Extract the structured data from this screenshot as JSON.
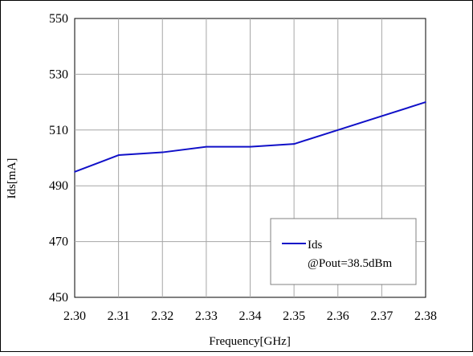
{
  "chart_data": {
    "type": "line",
    "title": "",
    "xlabel": "Frequency[GHz]",
    "ylabel": "Ids[mA]",
    "xlim": [
      2.3,
      2.38
    ],
    "ylim": [
      450,
      550
    ],
    "xticks": [
      "2.30",
      "2.31",
      "2.32",
      "2.33",
      "2.34",
      "2.35",
      "2.36",
      "2.37",
      "2.38"
    ],
    "yticks": [
      "450",
      "470",
      "490",
      "510",
      "530",
      "550"
    ],
    "grid": true,
    "legend_placement": "bottom-right",
    "series": [
      {
        "name": "Ids",
        "color": "#1010c8",
        "x": [
          2.3,
          2.31,
          2.32,
          2.33,
          2.34,
          2.35,
          2.36,
          2.37,
          2.38
        ],
        "y": [
          495,
          501,
          502,
          504,
          504,
          505,
          510,
          515,
          520
        ]
      }
    ],
    "annotation": "@Pout=38.5dBm"
  }
}
